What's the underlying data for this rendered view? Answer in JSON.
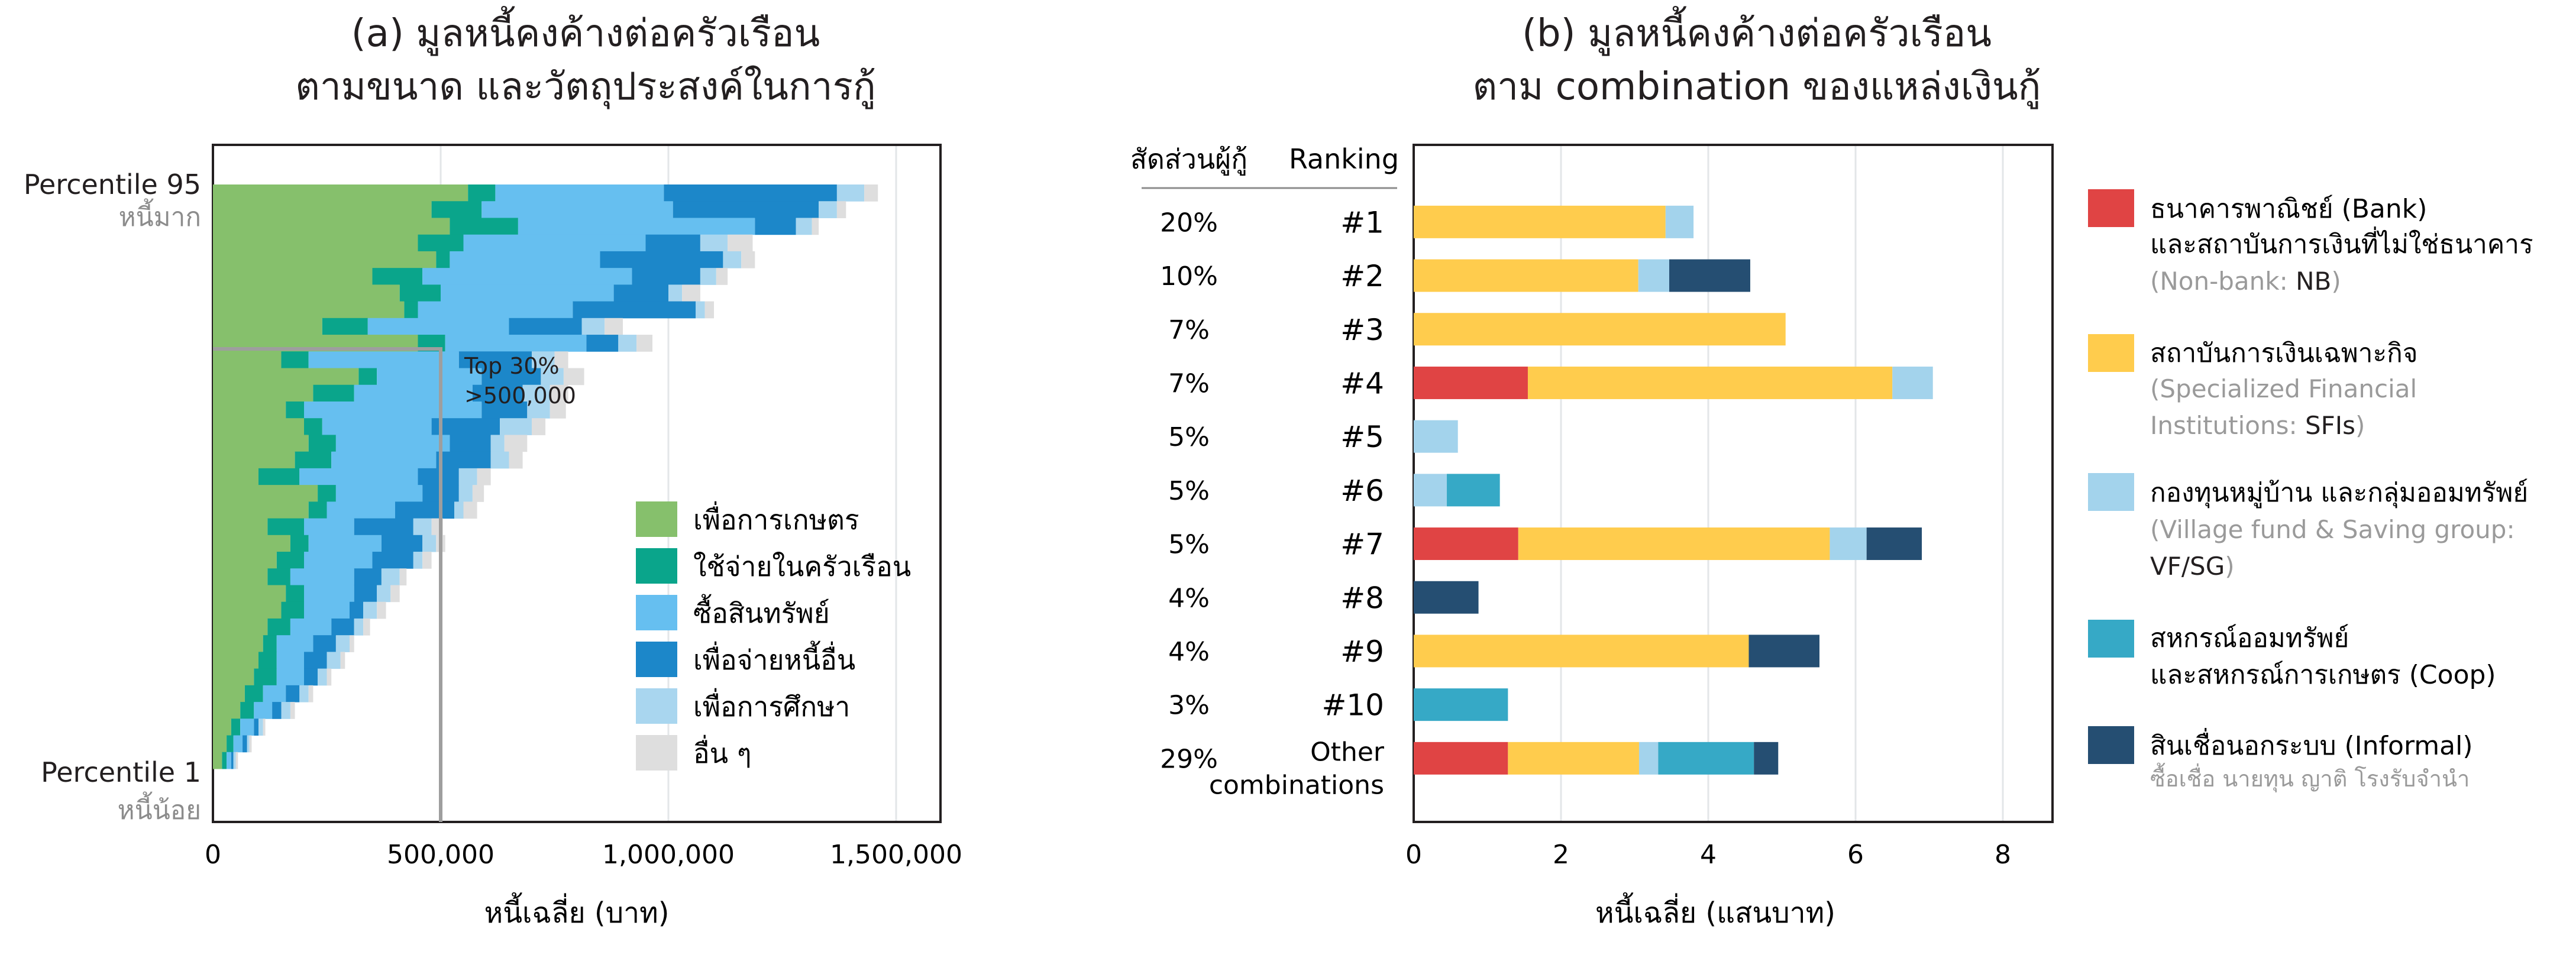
{
  "panel_a": {
    "title_line1": "(a) มูลหนี้คงค้างต่อครัวเรือน",
    "title_line2": "ตามขนาด และวัตถุประสงค์ในการกู้",
    "percentile_top": "Percentile 95",
    "percentile_top_sub": "หนี้มาก",
    "percentile_bottom": "Percentile 1",
    "percentile_bottom_sub": "หนี้น้อย",
    "annotation_line1": "Top 30%",
    "annotation_line2": ">500,000",
    "xlabel": "หนี้เฉลี่ย (บาท)",
    "xticks": [
      "0",
      "500,000",
      "1,000,000",
      "1,500,000"
    ],
    "legend": [
      {
        "label": "เพื่อการเกษตร",
        "color": "#86c06c"
      },
      {
        "label": "ใช้จ่ายในครัวเรือน",
        "color": "#0aa58b"
      },
      {
        "label": "ซื้อสินทรัพย์",
        "color": "#66bff0"
      },
      {
        "label": "เพื่อจ่ายหนี้อื่น",
        "color": "#1c87c9"
      },
      {
        "label": "เพื่อการศึกษา",
        "color": "#a9d6ef"
      },
      {
        "label": "อื่น ๆ",
        "color": "#dedede"
      }
    ]
  },
  "panel_b": {
    "title_line1": "(b) มูลหนี้คงค้างต่อครัวเรือน",
    "title_line2": "ตาม combination ของแหล่งเงินกู้",
    "col_share_header": "สัดส่วนผู้กู้",
    "col_rank_header": "Ranking",
    "xlabel": "หนี้เฉลี่ย (แสนบาท)",
    "legend": [
      {
        "line1": "ธนาคารพาณิชย์ (Bank)",
        "line2": "และสถาบันการเงินที่ไม่ใช่ธนาคาร",
        "sub": "(Non-bank: NB)",
        "color": "#e04444"
      },
      {
        "line1": "สถาบันการเงินเฉพาะกิจ",
        "line2": "",
        "sub": "(Specialized Financial Institutions: SFIs)",
        "color": "#ffcc4d"
      },
      {
        "line1": "กองทุนหมู่บ้าน และกลุ่มออมทรัพย์",
        "line2": "",
        "sub": "(Village fund & Saving group: VF/SG)",
        "color": "#a3d3ec"
      },
      {
        "line1": "สหกรณ์ออมทรัพย์",
        "line2": "และสหกรณ์การเกษตร (Coop)",
        "sub": "",
        "color": "#36a9c6"
      },
      {
        "line1": "สินเชื่อนอกระบบ (Informal)",
        "line2": "",
        "sub": "ซื้อเชื่อ นายทุน ญาติ โรงรับจำนำ",
        "color": "#254e72"
      }
    ]
  },
  "chart_data": [
    {
      "type": "bar",
      "orientation": "horizontal-stacked",
      "title": "(a) มูลหนี้คงค้างต่อครัวเรือน ตามขนาด และวัตถุประสงค์ในการกู้",
      "xlabel": "หนี้เฉลี่ย (บาท)",
      "xlim": [
        0,
        1600000
      ],
      "xticks": [
        0,
        500000,
        1000000,
        1500000
      ],
      "y_range": [
        "Percentile 1",
        "Percentile 95"
      ],
      "series_names": [
        "เพื่อการเกษตร",
        "ใช้จ่ายในครัวเรือน",
        "ซื้อสินทรัพย์",
        "เพื่อจ่ายหนี้อื่น",
        "เพื่อการศึกษา",
        "อื่น ๆ"
      ],
      "rows_top_to_bottom": [
        [
          560000,
          60000,
          370000,
          380000,
          60000,
          30000
        ],
        [
          480000,
          110000,
          420000,
          320000,
          40000,
          20000
        ],
        [
          520000,
          150000,
          520000,
          90000,
          35000,
          15000
        ],
        [
          450000,
          100000,
          400000,
          120000,
          60000,
          55000
        ],
        [
          490000,
          30000,
          330000,
          270000,
          40000,
          30000
        ],
        [
          350000,
          110000,
          460000,
          150000,
          35000,
          25000
        ],
        [
          410000,
          90000,
          380000,
          120000,
          30000,
          40000
        ],
        [
          420000,
          30000,
          340000,
          270000,
          20000,
          20000
        ],
        [
          240000,
          100000,
          310000,
          160000,
          50000,
          40000
        ],
        [
          450000,
          60000,
          310000,
          70000,
          40000,
          35000
        ],
        [
          150000,
          60000,
          330000,
          160000,
          50000,
          30000
        ],
        [
          320000,
          40000,
          230000,
          130000,
          50000,
          45000
        ],
        [
          220000,
          90000,
          260000,
          110000,
          60000,
          40000
        ],
        [
          160000,
          40000,
          390000,
          100000,
          50000,
          35000
        ],
        [
          200000,
          40000,
          240000,
          150000,
          70000,
          30000
        ],
        [
          210000,
          60000,
          250000,
          90000,
          30000,
          50000
        ],
        [
          180000,
          80000,
          230000,
          120000,
          40000,
          30000
        ],
        [
          100000,
          90000,
          260000,
          90000,
          40000,
          30000
        ],
        [
          230000,
          40000,
          190000,
          80000,
          30000,
          25000
        ],
        [
          210000,
          40000,
          150000,
          130000,
          20000,
          30000
        ],
        [
          120000,
          80000,
          110000,
          130000,
          40000,
          25000
        ],
        [
          170000,
          40000,
          160000,
          90000,
          30000,
          20000
        ],
        [
          140000,
          60000,
          150000,
          90000,
          20000,
          20000
        ],
        [
          120000,
          50000,
          140000,
          60000,
          40000,
          15000
        ],
        [
          160000,
          40000,
          110000,
          50000,
          30000,
          20000
        ],
        [
          150000,
          50000,
          100000,
          30000,
          30000,
          20000
        ],
        [
          120000,
          50000,
          90000,
          50000,
          20000,
          15000
        ],
        [
          110000,
          30000,
          80000,
          50000,
          30000,
          10000
        ],
        [
          100000,
          40000,
          60000,
          50000,
          30000,
          10000
        ],
        [
          90000,
          50000,
          60000,
          30000,
          20000,
          10000
        ],
        [
          70000,
          40000,
          50000,
          30000,
          20000,
          10000
        ],
        [
          60000,
          30000,
          40000,
          20000,
          20000,
          10000
        ],
        [
          40000,
          20000,
          30000,
          10000,
          10000,
          5000
        ],
        [
          30000,
          15000,
          20000,
          10000,
          5000,
          5000
        ],
        [
          20000,
          10000,
          10000,
          5000,
          5000,
          5000
        ]
      ],
      "annotation": {
        "text": "Top 30% >500,000",
        "threshold": 500000,
        "share": 0.3
      }
    },
    {
      "type": "bar",
      "orientation": "horizontal-stacked",
      "title": "(b) มูลหนี้คงค้างต่อครัวเรือน ตาม combination ของแหล่งเงินกู้",
      "xlabel": "หนี้เฉลี่ย (แสนบาท)",
      "xlim": [
        0,
        8.6
      ],
      "xticks": [
        0,
        2,
        4,
        6,
        8
      ],
      "categories": [
        "#1",
        "#2",
        "#3",
        "#4",
        "#5",
        "#6",
        "#7",
        "#8",
        "#9",
        "#10",
        "Other combinations"
      ],
      "shares": [
        "20%",
        "10%",
        "7%",
        "7%",
        "5%",
        "5%",
        "5%",
        "4%",
        "4%",
        "3%",
        "29%"
      ],
      "series": [
        {
          "name": "Bank/NB",
          "values": [
            0,
            0,
            0,
            1.55,
            0,
            0,
            1.42,
            0,
            0,
            0,
            1.28
          ]
        },
        {
          "name": "SFIs",
          "values": [
            3.42,
            3.05,
            5.05,
            4.95,
            0,
            0,
            4.23,
            0,
            4.55,
            0,
            1.78
          ]
        },
        {
          "name": "VF/SG",
          "values": [
            0.38,
            0.42,
            0,
            0.55,
            0.6,
            0.45,
            0.5,
            0,
            0,
            0,
            0.26
          ]
        },
        {
          "name": "Coop",
          "values": [
            0,
            0,
            0,
            0,
            0,
            0.72,
            0,
            0,
            0,
            1.28,
            1.3
          ]
        },
        {
          "name": "Informal",
          "values": [
            0,
            1.1,
            0,
            0,
            0,
            0,
            0.75,
            0.88,
            0.96,
            0,
            0.33
          ]
        }
      ]
    }
  ]
}
